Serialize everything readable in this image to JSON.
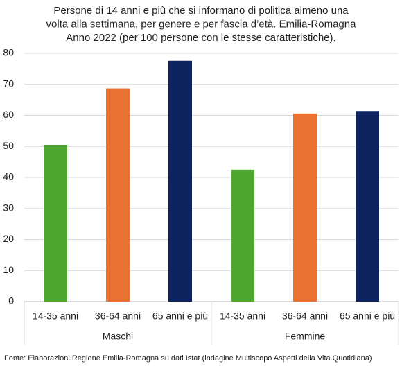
{
  "chart_data": {
    "type": "bar",
    "title": [
      "Persone di 14 anni e più che si informano di politica almeno una",
      "volta alla settimana, per genere e per fascia d’età. Emilia-Romagna",
      "Anno 2022 (per 100 persone con le stesse caratteristiche)."
    ],
    "categories": [
      "14-35 anni",
      "36-64 anni",
      "65 anni e più",
      "14-35 anni",
      "36-64 anni",
      "65 anni e più"
    ],
    "groups": [
      "Maschi",
      "Femmine"
    ],
    "values": [
      50.5,
      68.7,
      77.6,
      42.5,
      60.6,
      61.4
    ],
    "colors": [
      "#4ea72e",
      "#e97132",
      "#0e2460",
      "#4ea72e",
      "#e97132",
      "#0e2460"
    ],
    "ylim": [
      0,
      80
    ],
    "yticks": [
      0,
      10,
      20,
      30,
      40,
      50,
      60,
      70,
      80
    ],
    "grid": true,
    "source": "Fonte: Elaborazioni Regione Emilia-Romagna su dati Istat (indagine Multiscopo Aspetti della Vita Quotidiana)"
  }
}
